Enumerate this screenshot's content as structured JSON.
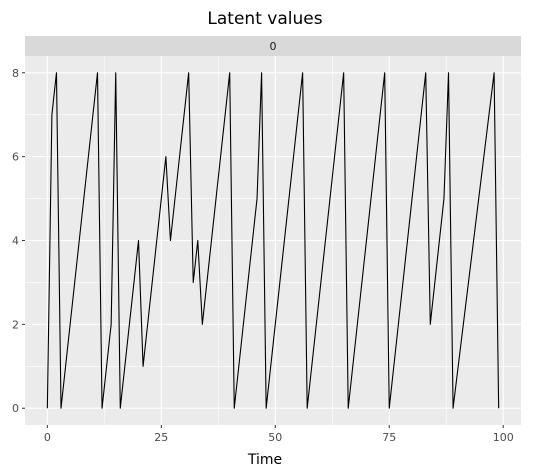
{
  "chart_data": {
    "type": "line",
    "title": "Latent values",
    "facet_label": "0",
    "xlabel": "Time",
    "ylabel": "",
    "xlim": [
      -4.9,
      103.9
    ],
    "ylim": [
      -0.4,
      8.4
    ],
    "x_ticks": [
      0,
      25,
      50,
      75,
      100
    ],
    "y_ticks": [
      0,
      2,
      4,
      6,
      8
    ],
    "grid": true,
    "background": "#ebebeb",
    "strip_background": "#d9d9d9",
    "line_color": "#000000",
    "series": [
      {
        "x": [
          0,
          1,
          2,
          3,
          11,
          12,
          14,
          15,
          16,
          20,
          21,
          26,
          27,
          31,
          32,
          33,
          34,
          40,
          41,
          46,
          47,
          48,
          56,
          57,
          65,
          66,
          74,
          75,
          83,
          84,
          87,
          88,
          89,
          98,
          99
        ],
        "y": [
          0,
          7,
          8,
          0,
          8,
          0,
          2,
          8,
          0,
          4,
          1,
          6,
          4,
          8,
          3,
          4,
          2,
          8,
          0,
          5,
          8,
          0,
          8,
          0,
          8,
          0,
          8,
          0,
          8,
          2,
          5,
          8,
          0,
          8,
          0
        ]
      }
    ]
  }
}
